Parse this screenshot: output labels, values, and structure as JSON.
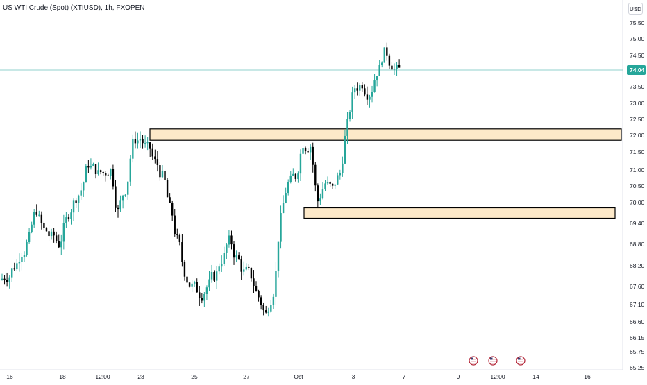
{
  "header": {
    "title": "US WTI Crude (Spot) (XTIUSD), 1h, FXOPEN"
  },
  "currency_button": "USD",
  "last_price_label": "74.04",
  "colors": {
    "up": "#26a69a",
    "down": "#000000",
    "zone_fill": "#fde9c9",
    "price_line": "#26a69a",
    "text": "#131722"
  },
  "chart_data": {
    "type": "candlestick",
    "title": "US WTI Crude (Spot) (XTIUSD), 1h, FXOPEN",
    "ylim": [
      65.5,
      75.85
    ],
    "ylabel": "USD",
    "yticks": [
      "75.50",
      "75.00",
      "74.50",
      "74.04",
      "73.50",
      "73.00",
      "72.50",
      "72.00",
      "71.50",
      "71.00",
      "70.50",
      "70.00",
      "69.40",
      "68.80",
      "68.20",
      "67.60",
      "67.10",
      "66.60",
      "66.15",
      "65.75",
      "65.25"
    ],
    "ytick_values": [
      75.5,
      75.0,
      74.5,
      74.04,
      73.5,
      73.0,
      72.5,
      72.0,
      71.5,
      71.0,
      70.5,
      70.0,
      69.4,
      68.8,
      68.2,
      67.6,
      67.1,
      66.6,
      66.15,
      65.75,
      65.25
    ],
    "xticks": [
      "16",
      "18",
      "12:00",
      "23",
      "25",
      "27",
      "Oct",
      "3",
      "7",
      "9",
      "12:00",
      "14",
      "16"
    ],
    "x_series": [
      [
        "16",
        67.9
      ],
      [
        "16",
        68.2
      ],
      [
        "17",
        68.6
      ],
      [
        "17",
        69.0
      ],
      [
        "18",
        69.8
      ],
      [
        "18",
        69.2
      ],
      [
        "18",
        69.0
      ],
      [
        "19",
        68.8
      ],
      [
        "19",
        69.5
      ],
      [
        "20",
        70.0
      ],
      [
        "20",
        70.4
      ],
      [
        "20",
        71.2
      ],
      [
        "20",
        71.0
      ],
      [
        "23",
        70.9
      ],
      [
        "23",
        71.0
      ],
      [
        "23",
        69.7
      ],
      [
        "23",
        70.4
      ],
      [
        "24",
        71.8
      ],
      [
        "24",
        71.9
      ],
      [
        "24",
        71.6
      ],
      [
        "24",
        71.2
      ],
      [
        "25",
        70.8
      ],
      [
        "25",
        69.8
      ],
      [
        "25",
        68.9
      ],
      [
        "26",
        68.0
      ],
      [
        "26",
        67.6
      ],
      [
        "26",
        67.4
      ],
      [
        "27",
        67.6
      ],
      [
        "27",
        67.9
      ],
      [
        "27",
        68.4
      ],
      [
        "28",
        68.9
      ],
      [
        "28",
        68.4
      ],
      [
        "30",
        68.0
      ],
      [
        "30",
        67.9
      ],
      [
        "30",
        67.3
      ],
      [
        "Oct",
        66.8
      ],
      [
        "1",
        67.5
      ],
      [
        "1",
        69.6
      ],
      [
        "1",
        70.6
      ],
      [
        "1",
        70.8
      ],
      [
        "2",
        71.8
      ],
      [
        "2",
        71.7
      ],
      [
        "2",
        70.0
      ],
      [
        "2",
        70.6
      ],
      [
        "3",
        70.4
      ],
      [
        "3",
        70.9
      ],
      [
        "3",
        72.4
      ],
      [
        "3",
        73.5
      ],
      [
        "4",
        73.6
      ],
      [
        "4",
        73.3
      ],
      [
        "4",
        74.0
      ],
      [
        "4",
        74.6
      ],
      [
        "7",
        74.2
      ],
      [
        "7",
        74.04
      ]
    ],
    "series": [
      {
        "name": "XTIUSD",
        "values_close_approx": [
          67.9,
          68.2,
          68.6,
          69.0,
          69.8,
          69.2,
          69.0,
          68.8,
          69.5,
          70.0,
          70.4,
          71.2,
          71.0,
          70.9,
          71.0,
          69.7,
          70.4,
          71.8,
          71.9,
          71.6,
          71.2,
          70.8,
          69.8,
          68.9,
          68.0,
          67.6,
          67.4,
          67.6,
          67.9,
          68.4,
          68.9,
          68.4,
          68.0,
          67.9,
          67.3,
          66.8,
          67.5,
          69.6,
          70.6,
          70.8,
          71.8,
          71.7,
          70.0,
          70.6,
          70.4,
          70.9,
          72.4,
          73.5,
          73.6,
          73.3,
          74.0,
          74.6,
          74.2,
          74.04
        ]
      }
    ],
    "annotations": [
      {
        "type": "zone",
        "from": 71.85,
        "to": 72.2
      },
      {
        "type": "zone",
        "from": 69.55,
        "to": 69.85
      }
    ],
    "last_price": 74.04,
    "events": [
      "us-flag",
      "us-flag",
      "us-flag"
    ]
  }
}
